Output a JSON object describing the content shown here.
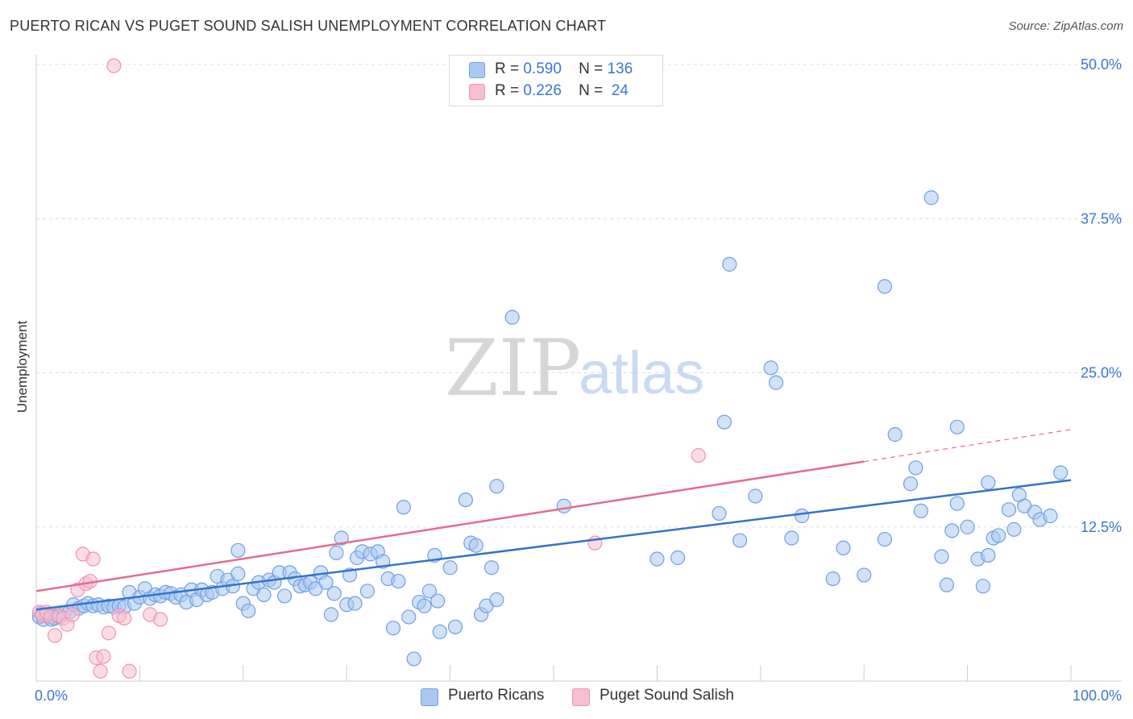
{
  "title": "PUERTO RICAN VS PUGET SOUND SALISH UNEMPLOYMENT CORRELATION CHART",
  "source": "Source: ZipAtlas.com",
  "watermark": {
    "zip": "ZIP",
    "atlas": "atlas"
  },
  "legend_top": [
    {
      "r_label": "R =",
      "r_value": "0.590",
      "n_label": "N =",
      "n_value": "136"
    },
    {
      "r_label": "R =",
      "r_value": "0.226",
      "n_label": "N =",
      "n_value": "24"
    }
  ],
  "colors": {
    "blue_fill": "#a9c8f2",
    "blue_stroke": "#6fa0e0",
    "blue_line": "#3373cc",
    "pink_fill": "#f7bfd0",
    "pink_stroke": "#ee94b0",
    "pink_line": "#e46a92",
    "grid": "#dddddd",
    "axis_label": "#3a76d0"
  },
  "chart_data": {
    "type": "scatter",
    "title": "PUERTO RICAN VS PUGET SOUND SALISH UNEMPLOYMENT CORRELATION CHART",
    "xlabel": "",
    "ylabel": "Unemployment",
    "xlim": [
      0,
      100
    ],
    "ylim": [
      0,
      50
    ],
    "x_tick_labels": [
      "0.0%",
      "100.0%"
    ],
    "y_ticks": [
      12.5,
      25.0,
      37.5,
      50.0
    ],
    "y_tick_labels": [
      "12.5%",
      "25.0%",
      "37.5%",
      "50.0%"
    ],
    "grid": "horizontal dashed",
    "legend_position": "top-center and bottom",
    "series": [
      {
        "name": "Puerto Ricans",
        "r": 0.59,
        "n": 136,
        "trend": {
          "x": [
            0,
            100
          ],
          "y": [
            5.8,
            16.3
          ]
        },
        "points": [
          [
            0.3,
            5.2
          ],
          [
            0.5,
            5.5
          ],
          [
            0.7,
            5.0
          ],
          [
            0.9,
            5.4
          ],
          [
            1.2,
            5.3
          ],
          [
            1.5,
            5.0
          ],
          [
            1.8,
            5.1
          ],
          [
            2.0,
            5.3
          ],
          [
            2.3,
            5.2
          ],
          [
            2.7,
            5.5
          ],
          [
            3.2,
            5.6
          ],
          [
            3.6,
            6.2
          ],
          [
            4.1,
            5.9
          ],
          [
            4.6,
            6.1
          ],
          [
            5.0,
            6.3
          ],
          [
            5.5,
            6.1
          ],
          [
            6.0,
            6.2
          ],
          [
            6.5,
            6.0
          ],
          [
            7.0,
            6.1
          ],
          [
            7.5,
            6.0
          ],
          [
            8.0,
            6.1
          ],
          [
            8.5,
            6.0
          ],
          [
            9.0,
            7.2
          ],
          [
            9.5,
            6.3
          ],
          [
            10.0,
            6.8
          ],
          [
            10.5,
            7.5
          ],
          [
            11.0,
            6.7
          ],
          [
            11.5,
            7.0
          ],
          [
            12.0,
            6.9
          ],
          [
            12.5,
            7.2
          ],
          [
            13.0,
            7.1
          ],
          [
            13.5,
            6.8
          ],
          [
            14.0,
            7.0
          ],
          [
            14.5,
            6.4
          ],
          [
            15.0,
            7.4
          ],
          [
            15.5,
            6.6
          ],
          [
            16.0,
            7.4
          ],
          [
            16.5,
            7.0
          ],
          [
            17.0,
            7.2
          ],
          [
            17.5,
            8.5
          ],
          [
            18.0,
            7.5
          ],
          [
            18.5,
            8.2
          ],
          [
            19.0,
            7.7
          ],
          [
            19.5,
            8.7
          ],
          [
            19.5,
            10.6
          ],
          [
            20.0,
            6.3
          ],
          [
            20.5,
            5.7
          ],
          [
            21.0,
            7.5
          ],
          [
            21.5,
            8.0
          ],
          [
            22.0,
            7.0
          ],
          [
            22.5,
            8.2
          ],
          [
            23.0,
            8.0
          ],
          [
            23.5,
            8.8
          ],
          [
            24.0,
            6.9
          ],
          [
            24.5,
            8.8
          ],
          [
            25.0,
            8.3
          ],
          [
            25.5,
            7.7
          ],
          [
            26.0,
            7.8
          ],
          [
            26.5,
            8.0
          ],
          [
            27.0,
            7.5
          ],
          [
            27.5,
            8.8
          ],
          [
            28.0,
            8.0
          ],
          [
            28.5,
            5.4
          ],
          [
            28.8,
            7.1
          ],
          [
            29.0,
            10.4
          ],
          [
            29.5,
            11.6
          ],
          [
            30.0,
            6.2
          ],
          [
            30.3,
            8.6
          ],
          [
            30.8,
            6.3
          ],
          [
            31.0,
            10.0
          ],
          [
            31.5,
            10.5
          ],
          [
            32.0,
            7.3
          ],
          [
            32.3,
            10.3
          ],
          [
            33.0,
            10.5
          ],
          [
            33.5,
            9.7
          ],
          [
            34.0,
            8.3
          ],
          [
            34.5,
            4.3
          ],
          [
            35.0,
            8.1
          ],
          [
            35.5,
            14.1
          ],
          [
            36.0,
            5.2
          ],
          [
            36.5,
            1.8
          ],
          [
            37.0,
            6.4
          ],
          [
            37.5,
            6.1
          ],
          [
            38.0,
            7.3
          ],
          [
            38.5,
            10.2
          ],
          [
            38.8,
            6.5
          ],
          [
            39.0,
            4.0
          ],
          [
            40.0,
            9.2
          ],
          [
            40.5,
            4.4
          ],
          [
            41.5,
            14.7
          ],
          [
            42.0,
            11.2
          ],
          [
            42.5,
            11.0
          ],
          [
            43.0,
            5.4
          ],
          [
            43.5,
            6.1
          ],
          [
            44.0,
            9.2
          ],
          [
            44.5,
            6.6
          ],
          [
            44.5,
            15.8
          ],
          [
            46.0,
            29.5
          ],
          [
            51.0,
            14.2
          ],
          [
            60.0,
            9.9
          ],
          [
            62.0,
            10.0
          ],
          [
            66.0,
            13.6
          ],
          [
            66.5,
            21.0
          ],
          [
            67.0,
            33.8
          ],
          [
            68.0,
            11.4
          ],
          [
            69.5,
            15.0
          ],
          [
            71.0,
            25.4
          ],
          [
            71.5,
            24.2
          ],
          [
            73.0,
            11.6
          ],
          [
            74.0,
            13.4
          ],
          [
            77.0,
            8.3
          ],
          [
            78.0,
            10.8
          ],
          [
            80.0,
            8.6
          ],
          [
            82.0,
            32.0
          ],
          [
            82.0,
            11.5
          ],
          [
            83.0,
            20.0
          ],
          [
            84.5,
            16.0
          ],
          [
            85.0,
            17.3
          ],
          [
            85.5,
            13.8
          ],
          [
            86.5,
            39.2
          ],
          [
            87.5,
            10.1
          ],
          [
            88.0,
            7.8
          ],
          [
            88.5,
            12.2
          ],
          [
            89.0,
            14.4
          ],
          [
            89.0,
            20.6
          ],
          [
            90.0,
            12.5
          ],
          [
            91.0,
            9.9
          ],
          [
            91.5,
            7.7
          ],
          [
            92.0,
            10.2
          ],
          [
            92.0,
            16.1
          ],
          [
            92.5,
            11.6
          ],
          [
            93.0,
            11.8
          ],
          [
            94.0,
            13.9
          ],
          [
            94.5,
            12.3
          ],
          [
            95.0,
            15.1
          ],
          [
            95.5,
            14.2
          ],
          [
            96.5,
            13.7
          ],
          [
            97.0,
            13.1
          ],
          [
            98.0,
            13.4
          ],
          [
            99.0,
            16.9
          ]
        ]
      },
      {
        "name": "Puget Sound Salish",
        "r": 0.226,
        "n": 24,
        "trend": {
          "x": [
            0,
            80
          ],
          "y": [
            7.3,
            17.8
          ],
          "dashed_to": {
            "x": 100,
            "y": 20.4
          }
        },
        "points": [
          [
            0.3,
            5.6
          ],
          [
            0.6,
            5.3
          ],
          [
            1.0,
            5.6
          ],
          [
            1.4,
            5.2
          ],
          [
            1.8,
            3.7
          ],
          [
            2.2,
            5.3
          ],
          [
            2.6,
            5.1
          ],
          [
            3.0,
            4.6
          ],
          [
            3.5,
            5.4
          ],
          [
            4.0,
            7.4
          ],
          [
            4.5,
            10.3
          ],
          [
            4.8,
            7.9
          ],
          [
            5.2,
            8.1
          ],
          [
            5.5,
            9.9
          ],
          [
            5.8,
            1.9
          ],
          [
            6.2,
            0.8
          ],
          [
            6.5,
            2.0
          ],
          [
            7.0,
            3.9
          ],
          [
            7.5,
            49.9
          ],
          [
            8.0,
            5.3
          ],
          [
            8.5,
            5.1
          ],
          [
            9.0,
            0.8
          ],
          [
            11.0,
            5.4
          ],
          [
            12.0,
            5.0
          ],
          [
            54.0,
            11.2
          ],
          [
            64.0,
            18.3
          ]
        ]
      }
    ]
  },
  "legend_bottom": [
    {
      "label": "Puerto Ricans"
    },
    {
      "label": "Puget Sound Salish"
    }
  ]
}
